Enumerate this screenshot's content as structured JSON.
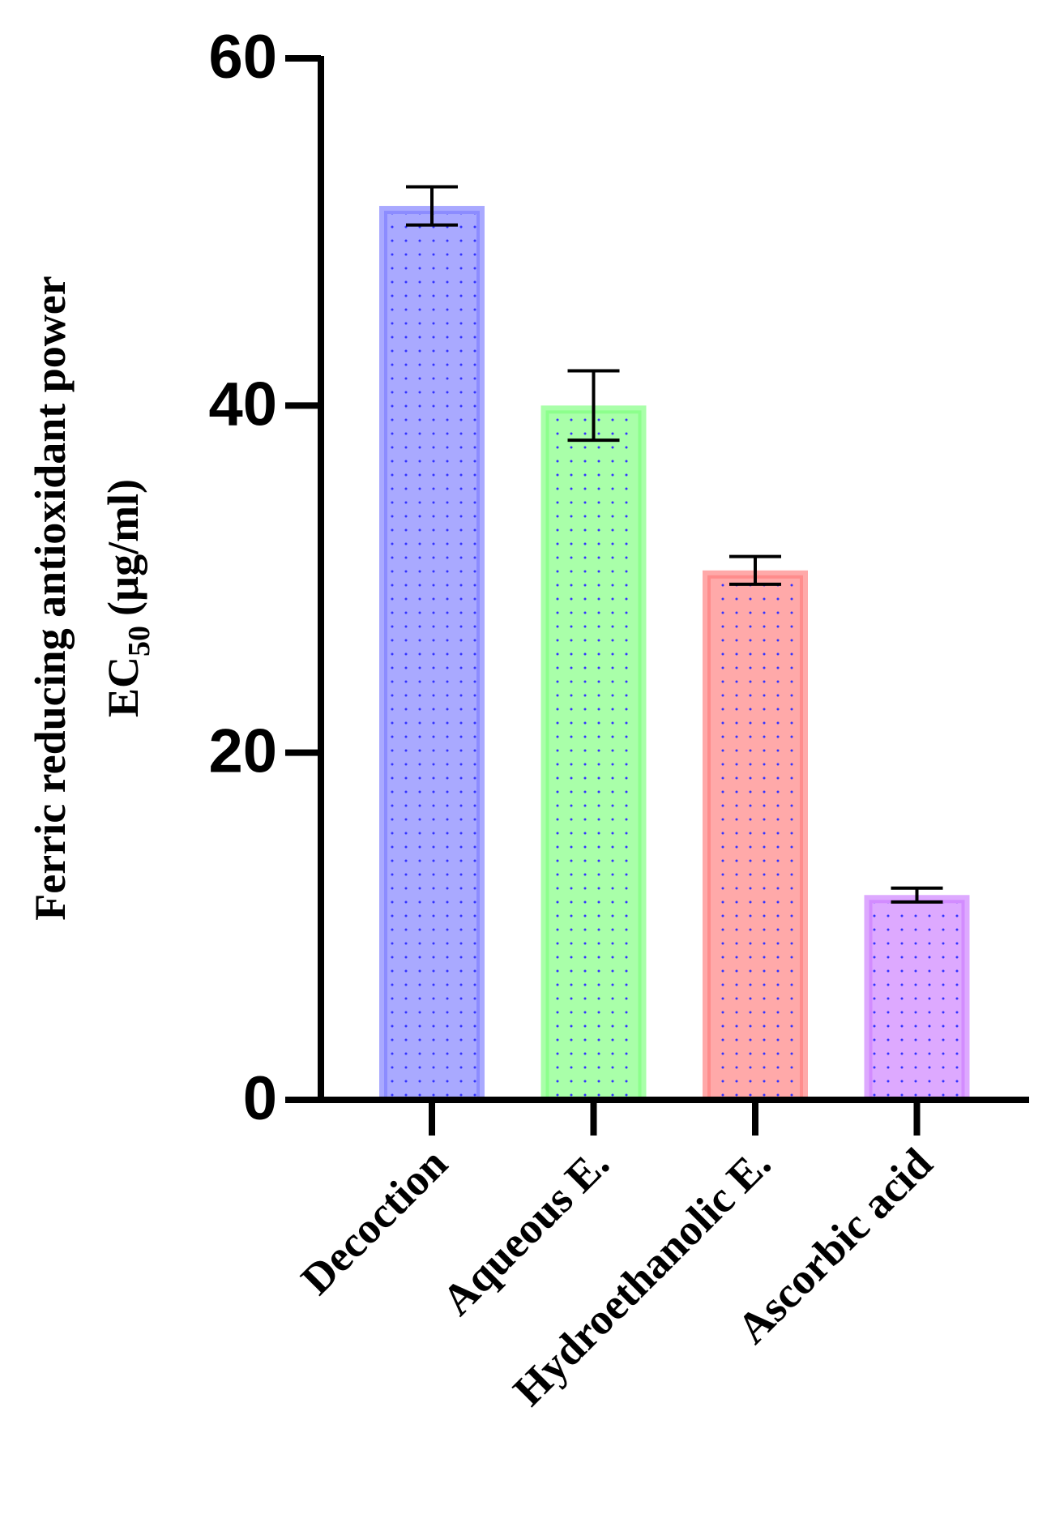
{
  "chart_data": {
    "type": "bar",
    "y_label": {
      "line1": "Ferric reducing antioxidant power",
      "line2": "EC",
      "subscript": "50",
      "unit": "(µg/ml)"
    },
    "categories": [
      "Decoction",
      "Aqueous E.",
      "Hydroethanolic E.",
      "Ascorbic acid"
    ],
    "values": [
      51.5,
      40,
      30.5,
      11.8
    ],
    "errors": [
      1.1,
      2,
      0.8,
      0.4
    ],
    "colors": [
      "#8c8cff",
      "#8cff8c",
      "#ff8c8c",
      "#d28cff"
    ],
    "ylim": [
      0,
      60
    ],
    "yticks": [
      0,
      20,
      40,
      60
    ]
  }
}
